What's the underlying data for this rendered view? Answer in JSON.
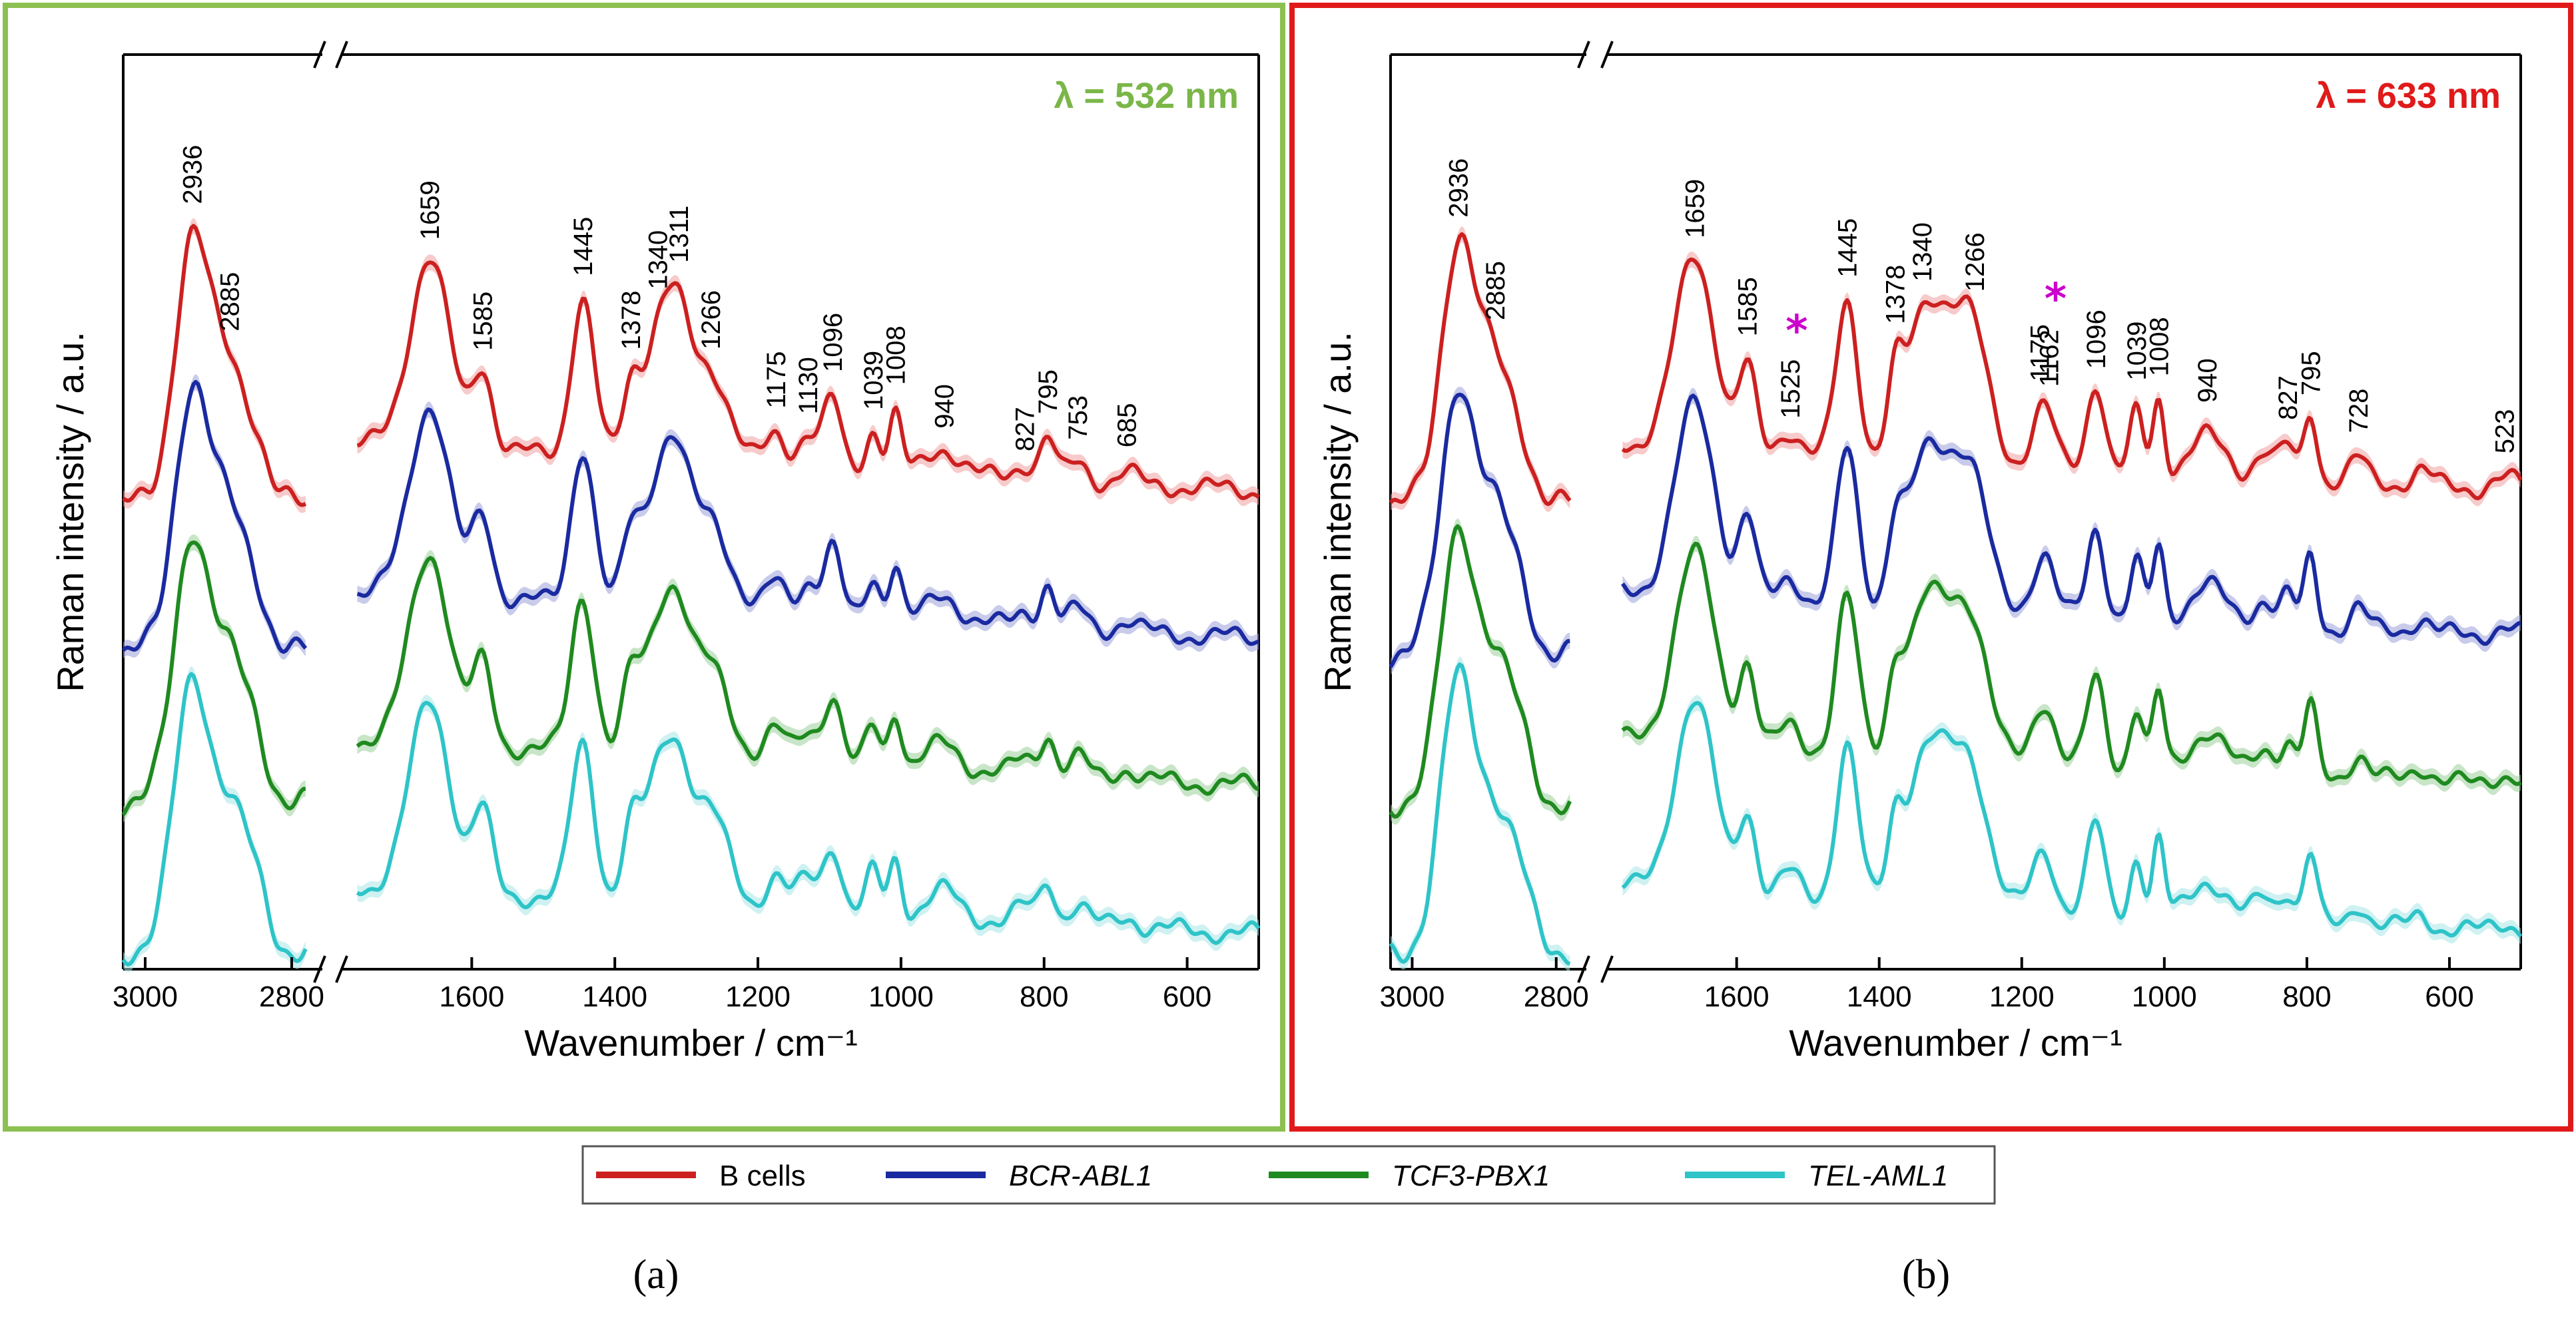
{
  "chart_data": [
    {
      "type": "line",
      "panel": "a",
      "title": "λ = 532 nm",
      "title_color": "#7ab648",
      "frame_color": "#8cc152",
      "xlabel": "Wavenumber / cm⁻¹",
      "ylabel": "Raman intensity / a.u.",
      "x_axis_break": true,
      "xlim_left_segment": [
        3030,
        2760
      ],
      "xlim_right_segment": [
        1780,
        500
      ],
      "xticks_left": [
        "3000",
        "2800"
      ],
      "xticks_right": [
        "1600",
        "1400",
        "1200",
        "1000",
        "800",
        "600"
      ],
      "peak_labels": [
        "2936",
        "2885",
        "1659",
        "1585",
        "1445",
        "1378",
        "1340",
        "1311",
        "1266",
        "1175",
        "1130",
        "1096",
        "1039",
        "1008",
        "940",
        "827",
        "795",
        "753",
        "685"
      ],
      "series": [
        {
          "name": "B cells",
          "color": "#cc2020",
          "band": "#f0a0a0",
          "offset": 3
        },
        {
          "name": "BCR-ABL1",
          "color": "#1a2aa0",
          "band": "#9aa0d8",
          "offset": 2
        },
        {
          "name": "TCF3-PBX1",
          "color": "#1f8a1f",
          "band": "#9ad09a",
          "offset": 1
        },
        {
          "name": "TEL-AML1",
          "color": "#2ec4c8",
          "band": "#a8e6e8",
          "offset": 0
        }
      ]
    },
    {
      "type": "line",
      "panel": "b",
      "title": "λ = 633 nm",
      "title_color": "#e01a1a",
      "frame_color": "#e01a1a",
      "xlabel": "Wavenumber / cm⁻¹",
      "ylabel": "Raman intensity / a.u.",
      "x_axis_break": true,
      "xlim_left_segment": [
        3030,
        2760
      ],
      "xlim_right_segment": [
        1780,
        500
      ],
      "xticks_left": [
        "3000",
        "2800"
      ],
      "xticks_right": [
        "1600",
        "1400",
        "1200",
        "1000",
        "800",
        "600"
      ],
      "peak_labels": [
        "2936",
        "2885",
        "1659",
        "1585",
        "1525",
        "1445",
        "1378",
        "1340",
        "1266",
        "1175",
        "1162",
        "1096",
        "1039",
        "1008",
        "940",
        "827",
        "795",
        "728",
        "523"
      ],
      "starred_peaks": [
        "1525",
        "1162"
      ],
      "series": [
        {
          "name": "B cells",
          "color": "#cc2020",
          "band": "#f0a0a0",
          "offset": 3
        },
        {
          "name": "BCR-ABL1",
          "color": "#1a2aa0",
          "band": "#9aa0d8",
          "offset": 2
        },
        {
          "name": "TCF3-PBX1",
          "color": "#1f8a1f",
          "band": "#9ad09a",
          "offset": 1
        },
        {
          "name": "TEL-AML1",
          "color": "#2ec4c8",
          "band": "#a8e6e8",
          "offset": 0
        }
      ]
    }
  ],
  "legend": {
    "items": [
      {
        "label": "B cells",
        "color": "#cc2020",
        "italic": false
      },
      {
        "label": "BCR-ABL1",
        "color": "#1a2aa0",
        "italic": true
      },
      {
        "label": "TCF3-PBX1",
        "color": "#1f8a1f",
        "italic": true
      },
      {
        "label": "TEL-AML1",
        "color": "#2ec4c8",
        "italic": true
      }
    ]
  },
  "captions": {
    "a": "(a)",
    "b": "(b)"
  },
  "break_symbol": "//",
  "star_symbol": "*"
}
